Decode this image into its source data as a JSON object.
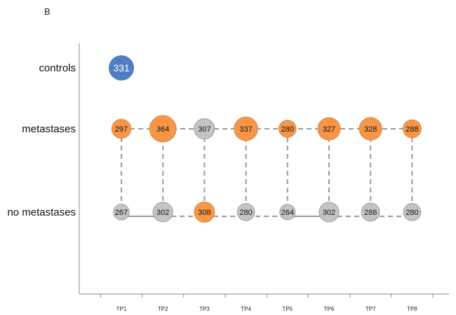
{
  "panel_label": "B",
  "colors": {
    "control": "#4F7FBF",
    "highlight": "#F79646",
    "neutral": "#C4C4C4",
    "outline": "#9A9A9A",
    "connector": "#9A9A9A",
    "axis": "#888888"
  },
  "chart_data": {
    "type": "scatter",
    "title": "",
    "xlabel": "",
    "ylabel": "",
    "categories": [
      "TP1",
      "TP2",
      "TP3",
      "TP4",
      "TP5",
      "TP6",
      "TP7",
      "TP8"
    ],
    "rows": [
      "controls",
      "metastases",
      "no metastases"
    ],
    "series": [
      {
        "name": "controls",
        "points": [
          {
            "x": "TP1",
            "value": 331,
            "color": "control"
          }
        ]
      },
      {
        "name": "metastases",
        "points": [
          {
            "x": "TP1",
            "value": 297,
            "color": "highlight"
          },
          {
            "x": "TP2",
            "value": 364,
            "color": "highlight"
          },
          {
            "x": "TP3",
            "value": 307,
            "color": "neutral"
          },
          {
            "x": "TP4",
            "value": 337,
            "color": "highlight"
          },
          {
            "x": "TP5",
            "value": 280,
            "color": "highlight"
          },
          {
            "x": "TP6",
            "value": 327,
            "color": "highlight"
          },
          {
            "x": "TP7",
            "value": 328,
            "color": "highlight"
          },
          {
            "x": "TP8",
            "value": 288,
            "color": "highlight"
          }
        ]
      },
      {
        "name": "no metastases",
        "points": [
          {
            "x": "TP1",
            "value": 267,
            "color": "neutral"
          },
          {
            "x": "TP2",
            "value": 302,
            "color": "neutral"
          },
          {
            "x": "TP3",
            "value": 308,
            "color": "highlight"
          },
          {
            "x": "TP4",
            "value": 280,
            "color": "neutral"
          },
          {
            "x": "TP5",
            "value": 264,
            "color": "neutral"
          },
          {
            "x": "TP6",
            "value": 302,
            "color": "neutral"
          },
          {
            "x": "TP7",
            "value": 288,
            "color": "neutral"
          },
          {
            "x": "TP8",
            "value": 280,
            "color": "neutral"
          }
        ]
      }
    ],
    "connectors": {
      "horizontal_metastases": [
        {
          "from": "TP1",
          "to": "TP8",
          "style": "dashed"
        }
      ],
      "horizontal_no_metastases": [
        {
          "from": "TP1",
          "to": "TP2",
          "style": "solid"
        },
        {
          "from": "TP2",
          "to": "TP5",
          "style": "dashed"
        },
        {
          "from": "TP5",
          "to": "TP6",
          "style": "solid"
        },
        {
          "from": "TP6",
          "to": "TP8",
          "style": "dashed"
        }
      ],
      "vertical": "dashed"
    },
    "grid": false,
    "legend": "none"
  }
}
